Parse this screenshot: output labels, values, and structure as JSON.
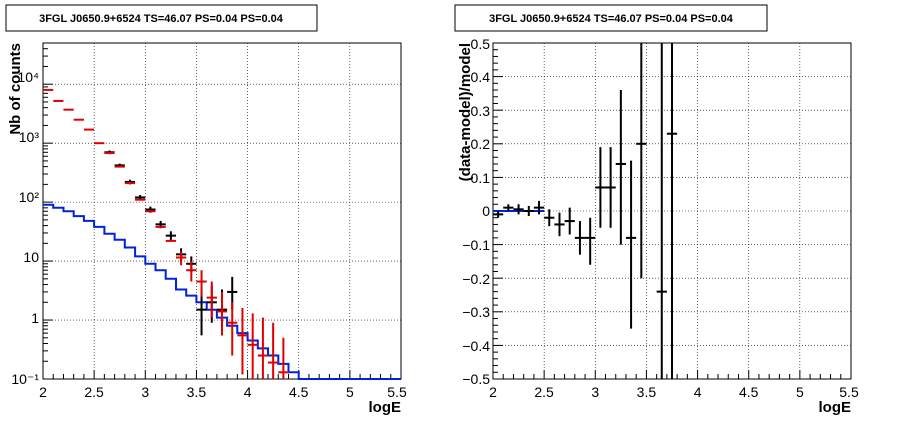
{
  "left_panel": {
    "title": "3FGL J0650.9+6524 TS=46.07 PS=0.04 PS=0.04",
    "xlabel": "logE",
    "ylabel": "Nb of counts",
    "xticks": [
      "2",
      "2.5",
      "3",
      "3.5",
      "4",
      "4.5",
      "5",
      "5.5"
    ],
    "yticks": [
      "10⁻¹",
      "1",
      "10",
      "10²",
      "10³",
      "10⁴"
    ]
  },
  "right_panel": {
    "title": "3FGL J0650.9+6524 TS=46.07 PS=0.04 PS=0.04",
    "xlabel": "logE",
    "ylabel": "(data-model)/model",
    "xticks": [
      "2",
      "2.5",
      "3",
      "3.5",
      "4",
      "4.5",
      "5",
      "5.5"
    ],
    "yticks": [
      "−0.5",
      "−0.4",
      "−0.3",
      "−0.2",
      "−0.1",
      "0",
      "0.1",
      "0.2",
      "0.3",
      "0.4",
      "0.5"
    ]
  },
  "colors": {
    "data": "#000000",
    "total_model": "#e00000",
    "source_model": "#0022dd",
    "grid": "#000000"
  },
  "chart_data": [
    {
      "type": "line",
      "title": "3FGL J0650.9+6524 TS=46.07 PS=0.04 PS=0.04",
      "xlabel": "logE",
      "ylabel": "Nb of counts",
      "xlim": [
        2,
        5.5
      ],
      "ylim": [
        0.1,
        50000
      ],
      "yscale": "log",
      "grid": true,
      "bin_width": 0.1,
      "series": [
        {
          "role": "data",
          "x": [
            2.65,
            2.75,
            2.85,
            2.95,
            3.05,
            3.15,
            3.25,
            3.35,
            3.45,
            3.55,
            3.65,
            3.75,
            3.85
          ],
          "y": [
            700,
            420,
            220,
            120,
            75,
            42,
            27,
            13,
            9,
            1.5,
            2,
            1.5,
            3
          ],
          "ylow": [
            650,
            390,
            200,
            108,
            66,
            36,
            22,
            10,
            6.5,
            0.55,
            0.9,
            0.55,
            1.5
          ],
          "yhigh": [
            750,
            450,
            240,
            132,
            84,
            48,
            32,
            16.5,
            12,
            3.3,
            3.8,
            3.3,
            5.4
          ]
        },
        {
          "role": "total_model",
          "x": [
            2.05,
            2.15,
            2.25,
            2.35,
            2.45,
            2.55,
            2.65,
            2.75,
            2.85,
            2.95,
            3.05,
            3.15,
            3.25,
            3.35,
            3.45,
            3.55,
            3.65,
            3.75,
            3.85,
            3.95,
            4.05,
            4.15,
            4.25,
            4.35
          ],
          "y": [
            8000,
            5200,
            3700,
            2500,
            1700,
            1000,
            680,
            400,
            210,
            110,
            70,
            38,
            22,
            11.5,
            7,
            4.5,
            2.4,
            1.4,
            0.9,
            0.55,
            0.38,
            0.25,
            0.19,
            0.13
          ],
          "ylow": [
            null,
            null,
            null,
            null,
            null,
            null,
            null,
            null,
            null,
            null,
            null,
            null,
            null,
            8.5,
            4.5,
            2.5,
            1.1,
            0.55,
            0.25,
            0.12,
            0.1,
            0.1,
            0.1,
            0.1
          ],
          "yhigh": [
            null,
            null,
            null,
            null,
            null,
            null,
            null,
            null,
            null,
            null,
            null,
            null,
            null,
            14.5,
            10,
            7,
            4.5,
            3,
            2,
            1.6,
            1.3,
            1.1,
            0.9,
            0.5
          ]
        },
        {
          "role": "source_model",
          "x": [
            2.0,
            2.1,
            2.2,
            2.3,
            2.4,
            2.5,
            2.6,
            2.7,
            2.8,
            2.9,
            3.0,
            3.1,
            3.2,
            3.3,
            3.4,
            3.5,
            3.6,
            3.7,
            3.8,
            3.9,
            4.0,
            4.1,
            4.2,
            4.3,
            4.4,
            4.5,
            5.5
          ],
          "y": [
            90,
            80,
            70,
            58,
            48,
            38,
            29,
            23,
            17,
            12,
            9,
            7,
            5,
            3.3,
            2.6,
            2.0,
            1.5,
            1.1,
            0.8,
            0.6,
            0.45,
            0.33,
            0.25,
            0.18,
            0.13,
            0.1,
            0.1
          ]
        }
      ]
    },
    {
      "type": "scatter",
      "title": "3FGL J0650.9+6524 TS=46.07 PS=0.04 PS=0.04",
      "xlabel": "logE",
      "ylabel": "(data-model)/model",
      "xlim": [
        2,
        5.5
      ],
      "ylim": [
        -0.5,
        0.5
      ],
      "grid": true,
      "bin_width": 0.1,
      "series": [
        {
          "role": "residual",
          "x": [
            2.05,
            2.15,
            2.25,
            2.35,
            2.45,
            2.55,
            2.65,
            2.75,
            2.85,
            2.95,
            3.05,
            3.15,
            3.25,
            3.35,
            3.45,
            3.65,
            3.75
          ],
          "y": [
            -0.01,
            0.01,
            0.005,
            0.0,
            0.01,
            -0.02,
            -0.04,
            -0.03,
            -0.08,
            -0.08,
            0.07,
            0.07,
            0.14,
            -0.08,
            0.2,
            -0.24,
            0.23
          ],
          "ylow": [
            -0.02,
            0.0,
            -0.01,
            -0.015,
            -0.01,
            -0.045,
            -0.075,
            -0.07,
            -0.13,
            -0.16,
            -0.05,
            -0.05,
            -0.1,
            -0.35,
            -0.2,
            -0.5,
            -0.5
          ],
          "yhigh": [
            0.0,
            0.02,
            0.02,
            0.015,
            0.03,
            0.005,
            -0.005,
            0.01,
            -0.03,
            -0.02,
            0.19,
            0.19,
            0.36,
            0.15,
            0.5,
            0.5,
            0.5
          ]
        },
        {
          "role": "zero_line",
          "x": [
            2.0,
            2.5
          ],
          "y": [
            0.0,
            0.0
          ]
        }
      ]
    }
  ]
}
